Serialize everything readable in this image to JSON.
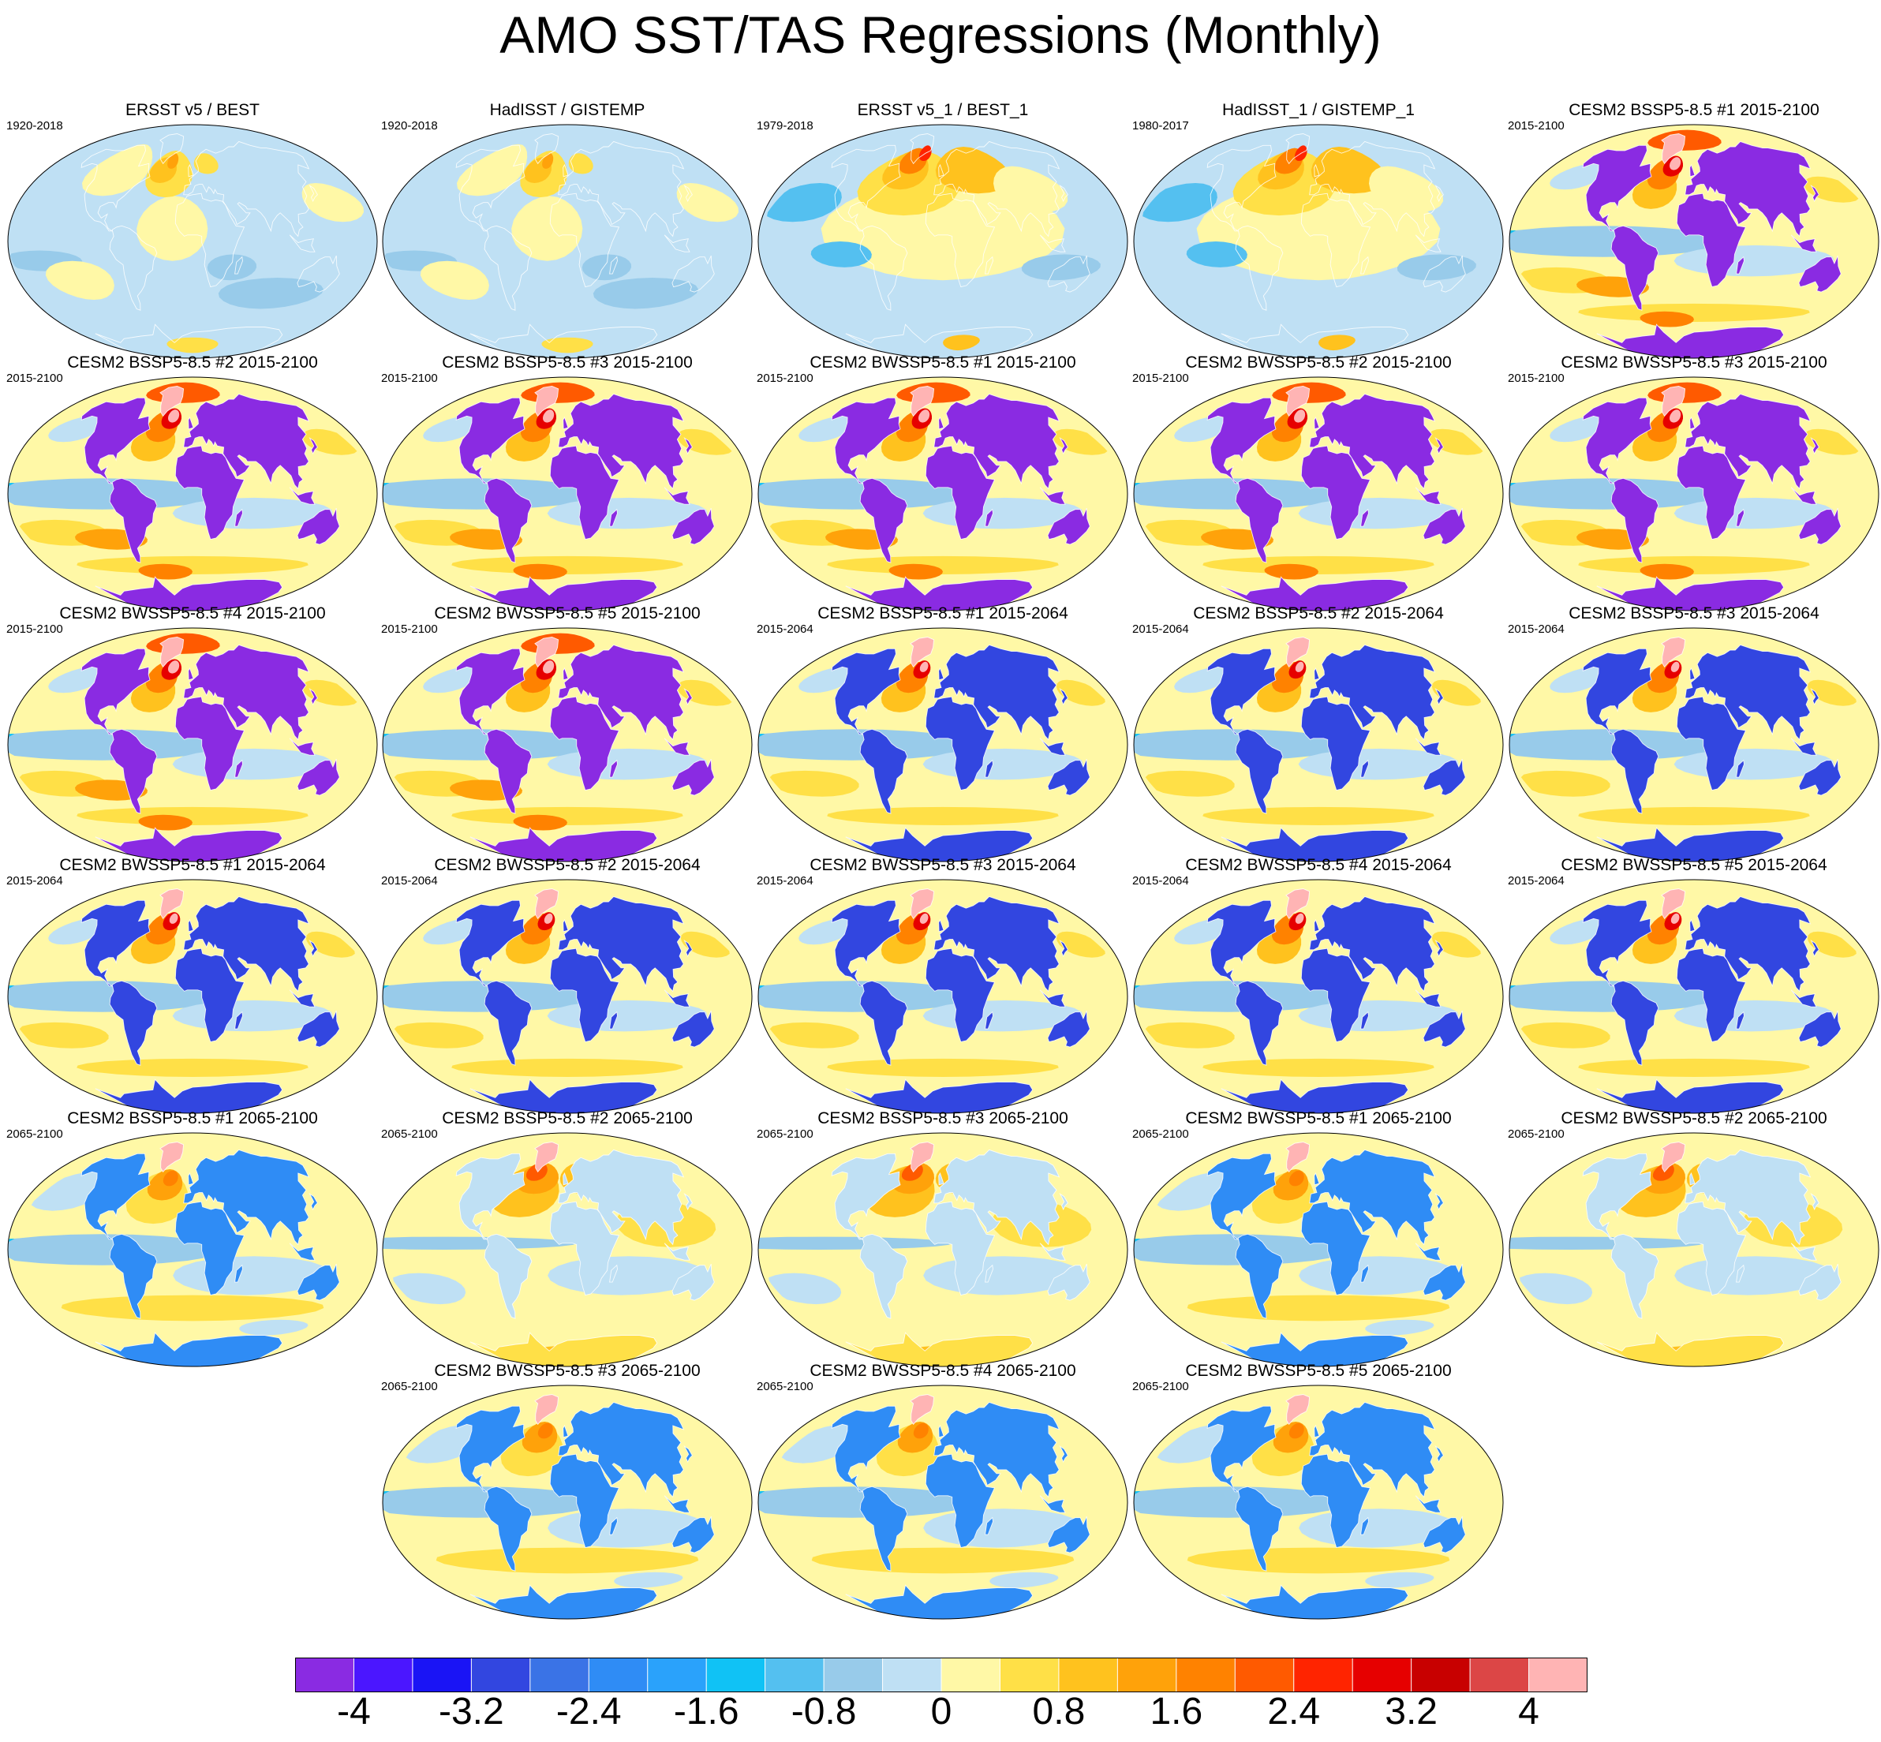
{
  "title": "AMO SST/TAS Regressions (Monthly)",
  "panels": [
    {
      "title": "ERSST v5 / BEST",
      "period": "1920-2018",
      "style": "obs"
    },
    {
      "title": "HadISST / GISTEMP",
      "period": "1920-2018",
      "style": "obs"
    },
    {
      "title": "ERSST v5_1 / BEST_1",
      "period": "1979-2018",
      "style": "obsWarm"
    },
    {
      "title": "HadISST_1 / GISTEMP_1",
      "period": "1980-2017",
      "style": "obsWarm"
    },
    {
      "title": "CESM2 BSSP5-8.5 #1 2015-2100",
      "period": "2015-2100",
      "style": "full"
    },
    {
      "title": "CESM2 BSSP5-8.5 #2 2015-2100",
      "period": "2015-2100",
      "style": "full"
    },
    {
      "title": "CESM2 BSSP5-8.5 #3 2015-2100",
      "period": "2015-2100",
      "style": "full"
    },
    {
      "title": "CESM2 BWSSP5-8.5 #1 2015-2100",
      "period": "2015-2100",
      "style": "full"
    },
    {
      "title": "CESM2 BWSSP5-8.5 #2 2015-2100",
      "period": "2015-2100",
      "style": "full"
    },
    {
      "title": "CESM2 BWSSP5-8.5 #3 2015-2100",
      "period": "2015-2100",
      "style": "full"
    },
    {
      "title": "CESM2 BWSSP5-8.5 #4 2015-2100",
      "period": "2015-2100",
      "style": "full"
    },
    {
      "title": "CESM2 BWSSP5-8.5 #5 2015-2100",
      "period": "2015-2100",
      "style": "full"
    },
    {
      "title": "CESM2 BSSP5-8.5 #1 2015-2064",
      "period": "2015-2064",
      "style": "early"
    },
    {
      "title": "CESM2 BSSP5-8.5 #2 2015-2064",
      "period": "2015-2064",
      "style": "early"
    },
    {
      "title": "CESM2 BSSP5-8.5 #3 2015-2064",
      "period": "2015-2064",
      "style": "early"
    },
    {
      "title": "CESM2 BWSSP5-8.5 #1 2015-2064",
      "period": "2015-2064",
      "style": "early"
    },
    {
      "title": "CESM2 BWSSP5-8.5 #2 2015-2064",
      "period": "2015-2064",
      "style": "early"
    },
    {
      "title": "CESM2 BWSSP5-8.5 #3 2015-2064",
      "period": "2015-2064",
      "style": "early"
    },
    {
      "title": "CESM2 BWSSP5-8.5 #4 2015-2064",
      "period": "2015-2064",
      "style": "early"
    },
    {
      "title": "CESM2 BWSSP5-8.5 #5 2015-2064",
      "period": "2015-2064",
      "style": "early"
    },
    {
      "title": "CESM2 BSSP5-8.5 #1 2065-2100",
      "period": "2065-2100",
      "style": "late"
    },
    {
      "title": "CESM2 BSSP5-8.5 #2 2065-2100",
      "period": "2065-2100",
      "style": "lateWarm"
    },
    {
      "title": "CESM2 BSSP5-8.5 #3 2065-2100",
      "period": "2065-2100",
      "style": "lateWarm"
    },
    {
      "title": "CESM2 BWSSP5-8.5 #1 2065-2100",
      "period": "2065-2100",
      "style": "late"
    },
    {
      "title": "CESM2 BWSSP5-8.5 #2 2065-2100",
      "period": "2065-2100",
      "style": "lateWarm"
    },
    {
      "title": "CESM2 BWSSP5-8.5 #3 2065-2100",
      "period": "2065-2100",
      "style": "late"
    },
    {
      "title": "CESM2 BWSSP5-8.5 #4 2065-2100",
      "period": "2065-2100",
      "style": "late"
    },
    {
      "title": "CESM2 BWSSP5-8.5 #5 2065-2100",
      "period": "2065-2100",
      "style": "late"
    }
  ],
  "colorbar": {
    "colors": [
      "#8a2be2",
      "#4b16ff",
      "#1a14f5",
      "#3246e0",
      "#3a73e6",
      "#2f8cf5",
      "#2aa2fb",
      "#10c2f5",
      "#54c0f0",
      "#98cbea",
      "#bfe0f4",
      "#fff8a6",
      "#ffe047",
      "#ffc21e",
      "#ffa20a",
      "#ff8200",
      "#ff5a00",
      "#ff2400",
      "#e60000",
      "#c80000",
      "#dc4646",
      "#ffb4b4"
    ],
    "labels": [
      "-4",
      "-3.2",
      "-2.4",
      "-1.6",
      "-0.8",
      "0",
      "0.8",
      "1.6",
      "2.4",
      "3.2",
      "4"
    ]
  }
}
